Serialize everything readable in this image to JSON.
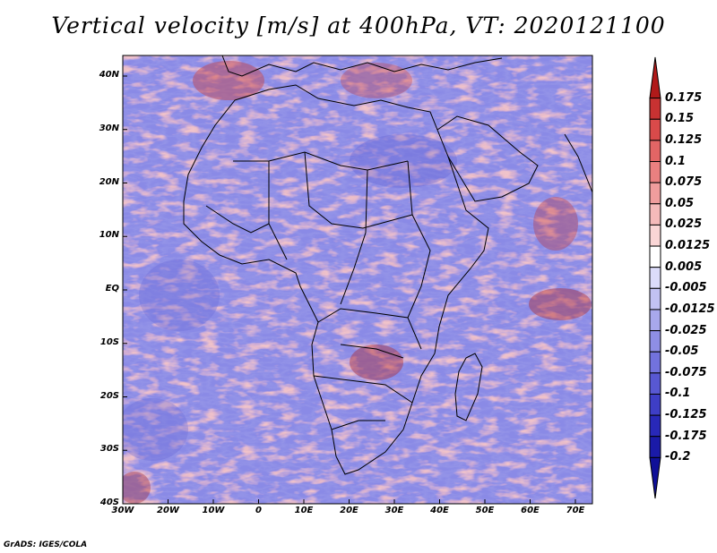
{
  "title": "Vertical velocity [m/s] at 400hPa, VT: 2020121100",
  "footer": "GrADS: IGES/COLA",
  "axes": {
    "lat_labels": [
      "40N",
      "30N",
      "20N",
      "10N",
      "EQ",
      "10S",
      "20S",
      "30S",
      "40S"
    ],
    "lon_labels": [
      "30W",
      "20W",
      "10W",
      "0",
      "10E",
      "20E",
      "30E",
      "40E",
      "50E",
      "60E",
      "70E"
    ]
  },
  "colorbar": {
    "labels": [
      "0.175",
      "0.15",
      "0.125",
      "0.1",
      "0.075",
      "0.05",
      "0.025",
      "0.0125",
      "0.005",
      "-0.005",
      "-0.0125",
      "-0.025",
      "-0.05",
      "-0.075",
      "-0.1",
      "-0.125",
      "-0.175",
      "-0.2"
    ],
    "colors": [
      "#b01a1a",
      "#c83232",
      "#d94a4a",
      "#e36565",
      "#ea8080",
      "#f09d9d",
      "#f5baba",
      "#fad6d6",
      "#ffffff",
      "#dcdcfa",
      "#c2c2f3",
      "#a8a8ec",
      "#8e8ee5",
      "#7272dd",
      "#5858d2",
      "#3e3ec6",
      "#2828b8",
      "#1a1aa8",
      "#101098"
    ]
  },
  "colors": {
    "positive": "#c83232",
    "negative": "#4040c8",
    "background": "#ffffff"
  }
}
